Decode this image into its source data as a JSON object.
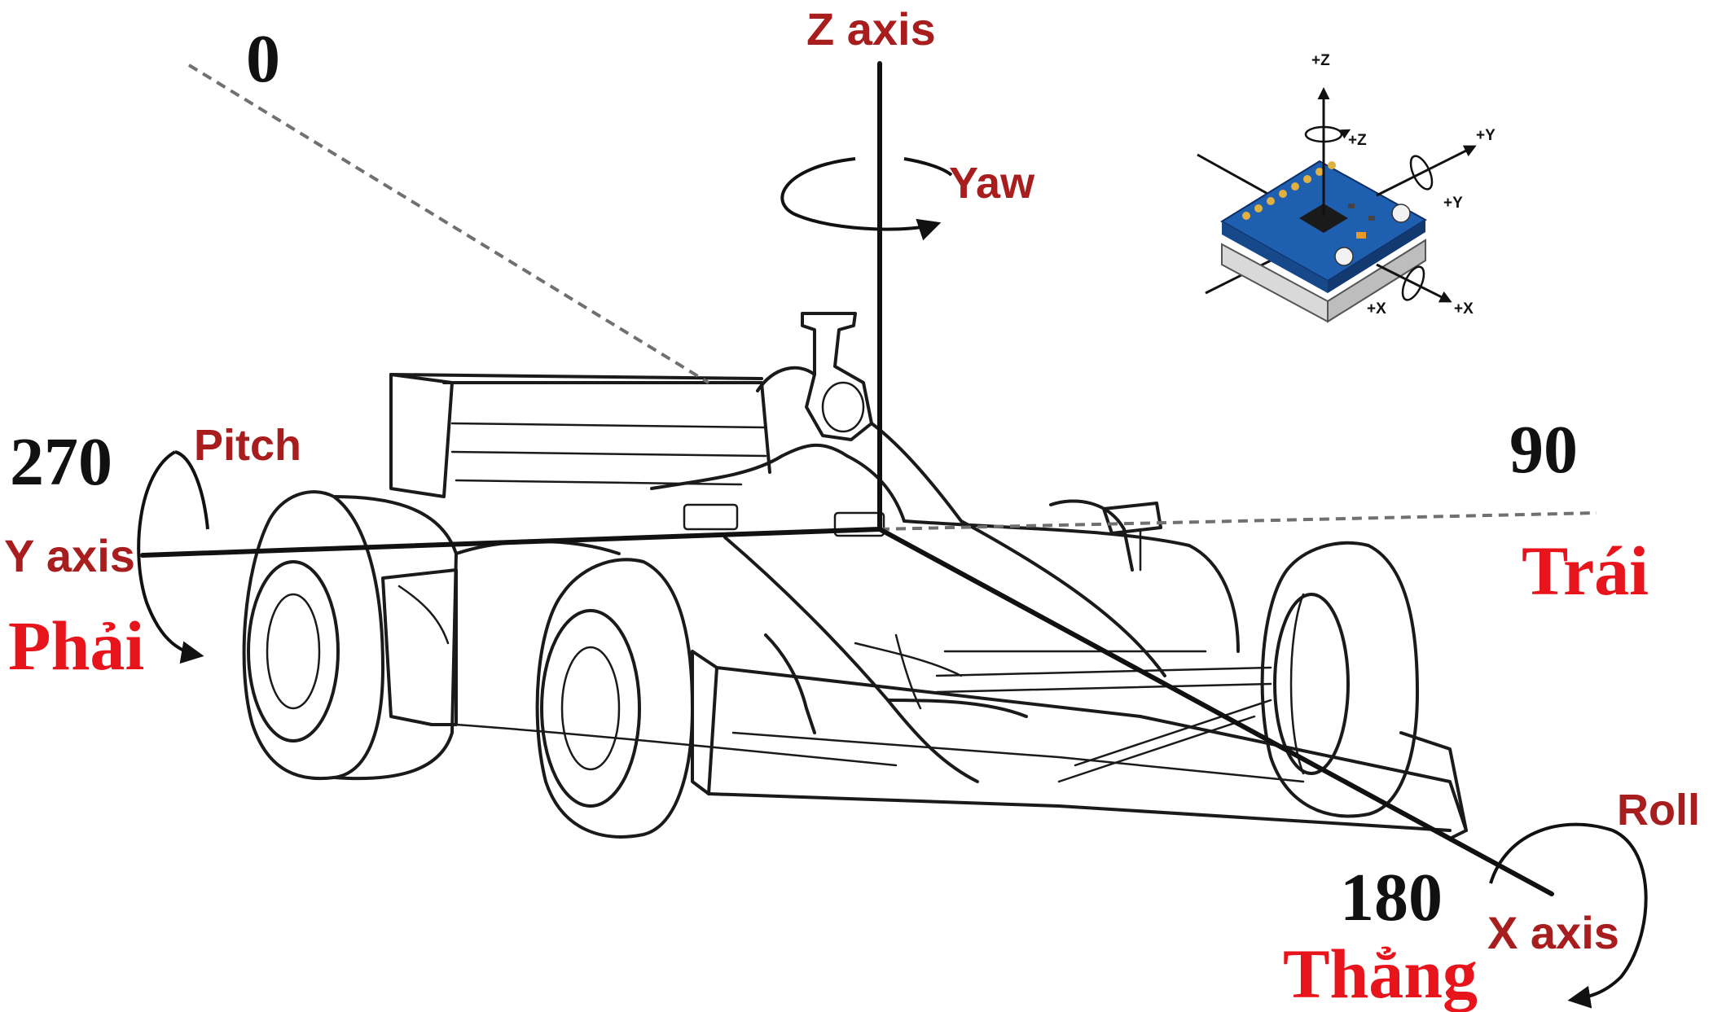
{
  "axes": {
    "z_label": "Z axis",
    "y_label": "Y axis",
    "x_label": "X axis"
  },
  "rotations": {
    "yaw": "Yaw",
    "pitch": "Pitch",
    "roll": "Roll"
  },
  "angles": {
    "top": "0",
    "left": "270",
    "right": "90",
    "bottom": "180"
  },
  "directions": {
    "right": "Phải",
    "left": "Trái",
    "straight": "Thẳng"
  },
  "sensor": {
    "plus_z_axis": "+Z",
    "plus_z_rot": "+Z",
    "plus_y_axis": "+Y",
    "plus_y_rot": "+Y",
    "plus_x_rot": "+X",
    "plus_x_axis": "+X"
  },
  "colors": {
    "axis_label": "#a81d1d",
    "direction_label": "#e8141b",
    "pcb": "#1f5fb0"
  }
}
